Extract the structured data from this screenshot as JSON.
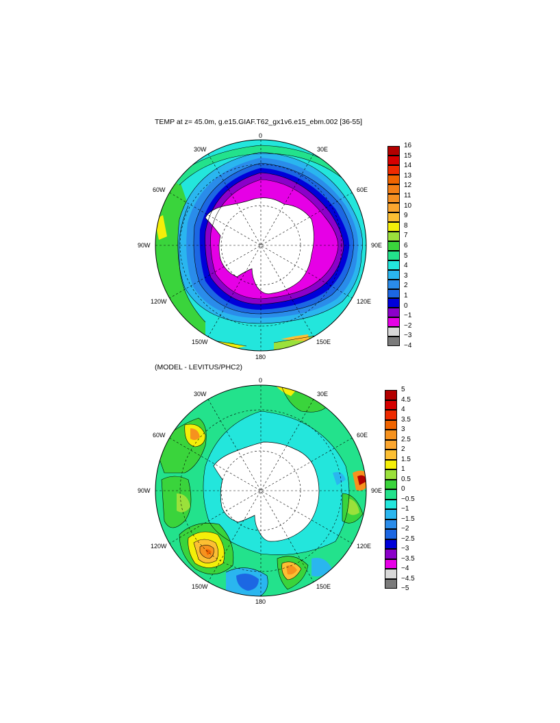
{
  "panel1": {
    "title": "TEMP at z=  45.0m, g.e15.GIAF.T62_gx1v6.e15_ebm.002 [36-55]",
    "lon_labels": {
      "top": "0",
      "tr": "30E",
      "r1": "60E",
      "right": "90E",
      "r2": "120E",
      "br": "150E",
      "bottom": "180",
      "bl": "150W",
      "l2": "120W",
      "left": "90W",
      "l1": "60W",
      "tl": "30W"
    },
    "colorbar": {
      "ticks": [
        "16",
        "15",
        "14",
        "13",
        "12",
        "11",
        "10",
        "9",
        "8",
        "7",
        "6",
        "5",
        "4",
        "3",
        "2",
        "1",
        "0",
        "−1",
        "−2",
        "−3",
        "−4"
      ],
      "colors": [
        "#b30000",
        "#d60000",
        "#ee2a00",
        "#f06400",
        "#f47f16",
        "#f69022",
        "#fba62f",
        "#fcbf33",
        "#f4ef09",
        "#9be13b",
        "#3ad43c",
        "#23e28c",
        "#23e6dc",
        "#2ab6ef",
        "#2a8cea",
        "#1c67e3",
        "#0000d9",
        "#8b00c9",
        "#e600e6",
        "#d8d8d8",
        "#7b7b7b"
      ]
    }
  },
  "panel2": {
    "title": "(MODEL - LEVITUS/PHC2)",
    "lon_labels": {
      "top": "0",
      "tr": "30E",
      "r1": "60E",
      "right": "90E",
      "r2": "120E",
      "br": "150E",
      "bottom": "180",
      "bl": "150W",
      "l2": "120W",
      "left": "90W",
      "l1": "60W",
      "tl": "30W"
    },
    "colorbar": {
      "ticks": [
        "5",
        "4.5",
        "4",
        "3.5",
        "3",
        "2.5",
        "2",
        "1.5",
        "1",
        "0.5",
        "0",
        "−0.5",
        "−1",
        "−1.5",
        "−2",
        "−2.5",
        "−3",
        "−3.5",
        "−4",
        "−4.5",
        "−5"
      ],
      "colors": [
        "#b30000",
        "#d60000",
        "#ee2a00",
        "#f06400",
        "#f6921e",
        "#fba62f",
        "#fcbf33",
        "#f4ef09",
        "#9be13b",
        "#3ad43c",
        "#23e28c",
        "#23e6dc",
        "#2ab6ef",
        "#2a8cea",
        "#1c67e3",
        "#0000d9",
        "#8b00c9",
        "#e600e6",
        "#d8d8d8",
        "#7b7b7b"
      ]
    }
  }
}
